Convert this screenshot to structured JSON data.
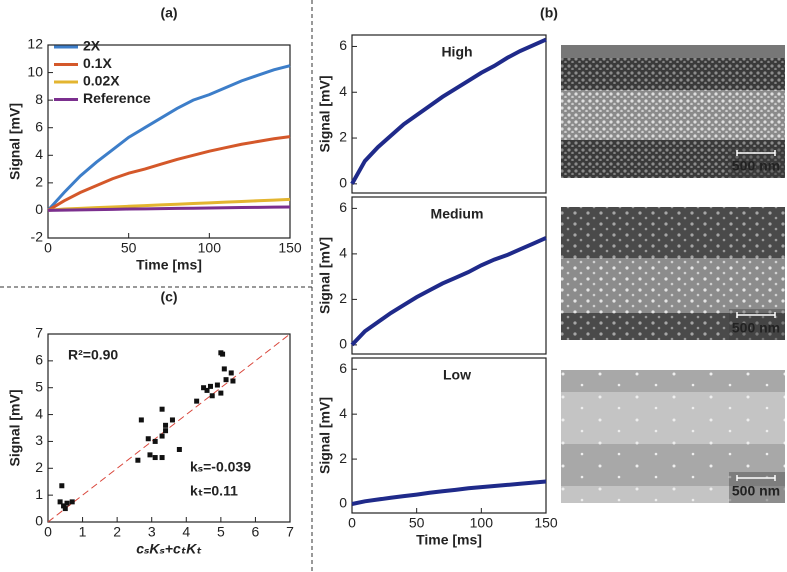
{
  "chart_data": [
    {
      "type": "line",
      "title": "(a)",
      "xlabel": "Time [ms]",
      "ylabel": "Signal [mV]",
      "x": [
        0,
        10,
        20,
        30,
        40,
        50,
        60,
        70,
        80,
        90,
        100,
        110,
        120,
        130,
        140,
        150
      ],
      "series": [
        {
          "name": "2X",
          "color": "#3d7ec9",
          "values": [
            0,
            1.3,
            2.5,
            3.5,
            4.4,
            5.3,
            6.0,
            6.7,
            7.4,
            8.0,
            8.4,
            8.9,
            9.4,
            9.8,
            10.2,
            10.5
          ]
        },
        {
          "name": "0.1X",
          "color": "#d4582a",
          "values": [
            0,
            0.7,
            1.3,
            1.8,
            2.3,
            2.7,
            3.0,
            3.35,
            3.7,
            4.0,
            4.3,
            4.55,
            4.8,
            5.0,
            5.2,
            5.35
          ]
        },
        {
          "name": "0.02X",
          "color": "#e3b530",
          "values": [
            0,
            0.1,
            0.15,
            0.2,
            0.25,
            0.3,
            0.35,
            0.4,
            0.45,
            0.5,
            0.55,
            0.6,
            0.65,
            0.7,
            0.75,
            0.8
          ]
        },
        {
          "name": "Reference",
          "color": "#7b2f8e",
          "values": [
            0,
            0.02,
            0.04,
            0.06,
            0.08,
            0.1,
            0.11,
            0.13,
            0.15,
            0.16,
            0.18,
            0.19,
            0.21,
            0.22,
            0.24,
            0.25
          ]
        }
      ],
      "xlim": [
        0,
        150
      ],
      "ylim": [
        -2,
        12
      ],
      "xticks": [
        0,
        50,
        100,
        150
      ],
      "yticks": [
        -2,
        0,
        2,
        4,
        6,
        8,
        10,
        12
      ],
      "legend": "upper left"
    },
    {
      "type": "scatter",
      "title": "(c)",
      "xlabel": "cₛKₛ+cₜKₜ",
      "ylabel": "Signal [mV]",
      "annotations": [
        "R²=0.90",
        "kₛ=-0.039",
        "kₜ=0.11"
      ],
      "x": [
        0.35,
        0.4,
        0.45,
        0.5,
        0.55,
        0.7,
        2.6,
        2.7,
        2.9,
        2.95,
        3.1,
        3.1,
        3.3,
        3.3,
        3.3,
        3.4,
        3.4,
        3.6,
        3.8,
        4.3,
        4.5,
        4.6,
        4.7,
        4.75,
        4.9,
        5.0,
        5.0,
        5.05,
        5.1,
        5.15,
        5.3,
        5.35
      ],
      "values": [
        0.75,
        1.35,
        0.6,
        0.5,
        0.7,
        0.75,
        2.3,
        3.8,
        3.1,
        2.5,
        3.0,
        2.4,
        3.2,
        2.4,
        4.2,
        3.6,
        3.4,
        3.8,
        2.7,
        4.5,
        5.0,
        4.9,
        5.05,
        4.7,
        5.1,
        6.3,
        4.8,
        6.25,
        5.7,
        5.3,
        5.55,
        5.25
      ],
      "color": "#111111",
      "fit_color": "#d9453a",
      "xlim": [
        0,
        7
      ],
      "ylim": [
        0,
        7
      ],
      "xticks": [
        0,
        1,
        2,
        3,
        4,
        5,
        6,
        7
      ],
      "yticks": [
        0,
        1,
        2,
        3,
        4,
        5,
        6,
        7
      ]
    },
    {
      "type": "line",
      "panel_label": "(b)",
      "title": "High",
      "ylabel": "Signal [mV]",
      "scale_bar": "500 nm",
      "x": [
        0,
        10,
        20,
        30,
        40,
        50,
        60,
        70,
        80,
        90,
        100,
        110,
        120,
        130,
        140,
        150
      ],
      "series": [
        {
          "color": "#1f2a8a",
          "values": [
            0,
            1.0,
            1.6,
            2.1,
            2.6,
            3.0,
            3.4,
            3.8,
            4.15,
            4.5,
            4.85,
            5.15,
            5.5,
            5.8,
            6.05,
            6.3
          ]
        }
      ],
      "xlim": [
        0,
        150
      ],
      "ylim": [
        -0.4,
        6.5
      ],
      "yticks": [
        0,
        2,
        4,
        6
      ]
    },
    {
      "type": "line",
      "title": "Medium",
      "ylabel": "Signal [mV]",
      "scale_bar": "500 nm",
      "x": [
        0,
        10,
        20,
        30,
        40,
        50,
        60,
        70,
        80,
        90,
        100,
        110,
        120,
        130,
        140,
        150
      ],
      "series": [
        {
          "color": "#1f2a8a",
          "values": [
            0,
            0.6,
            1.0,
            1.4,
            1.75,
            2.1,
            2.4,
            2.7,
            2.95,
            3.2,
            3.5,
            3.75,
            3.95,
            4.2,
            4.45,
            4.7
          ]
        }
      ],
      "xlim": [
        0,
        150
      ],
      "ylim": [
        -0.4,
        6.5
      ],
      "yticks": [
        0,
        2,
        4,
        6
      ]
    },
    {
      "type": "line",
      "title": "Low",
      "ylabel": "Signal [mV]",
      "xlabel": "Time [ms]",
      "scale_bar": "500 nm",
      "x": [
        0,
        10,
        20,
        30,
        40,
        50,
        60,
        70,
        80,
        90,
        100,
        110,
        120,
        130,
        140,
        150
      ],
      "series": [
        {
          "color": "#1f2a8a",
          "values": [
            0,
            0.12,
            0.2,
            0.28,
            0.35,
            0.42,
            0.5,
            0.57,
            0.63,
            0.7,
            0.75,
            0.8,
            0.85,
            0.9,
            0.95,
            1.0
          ]
        }
      ],
      "xlim": [
        0,
        150
      ],
      "ylim": [
        -0.4,
        6.5
      ],
      "xticks": [
        0,
        50,
        100,
        150
      ],
      "yticks": [
        0,
        2,
        4,
        6
      ]
    }
  ]
}
